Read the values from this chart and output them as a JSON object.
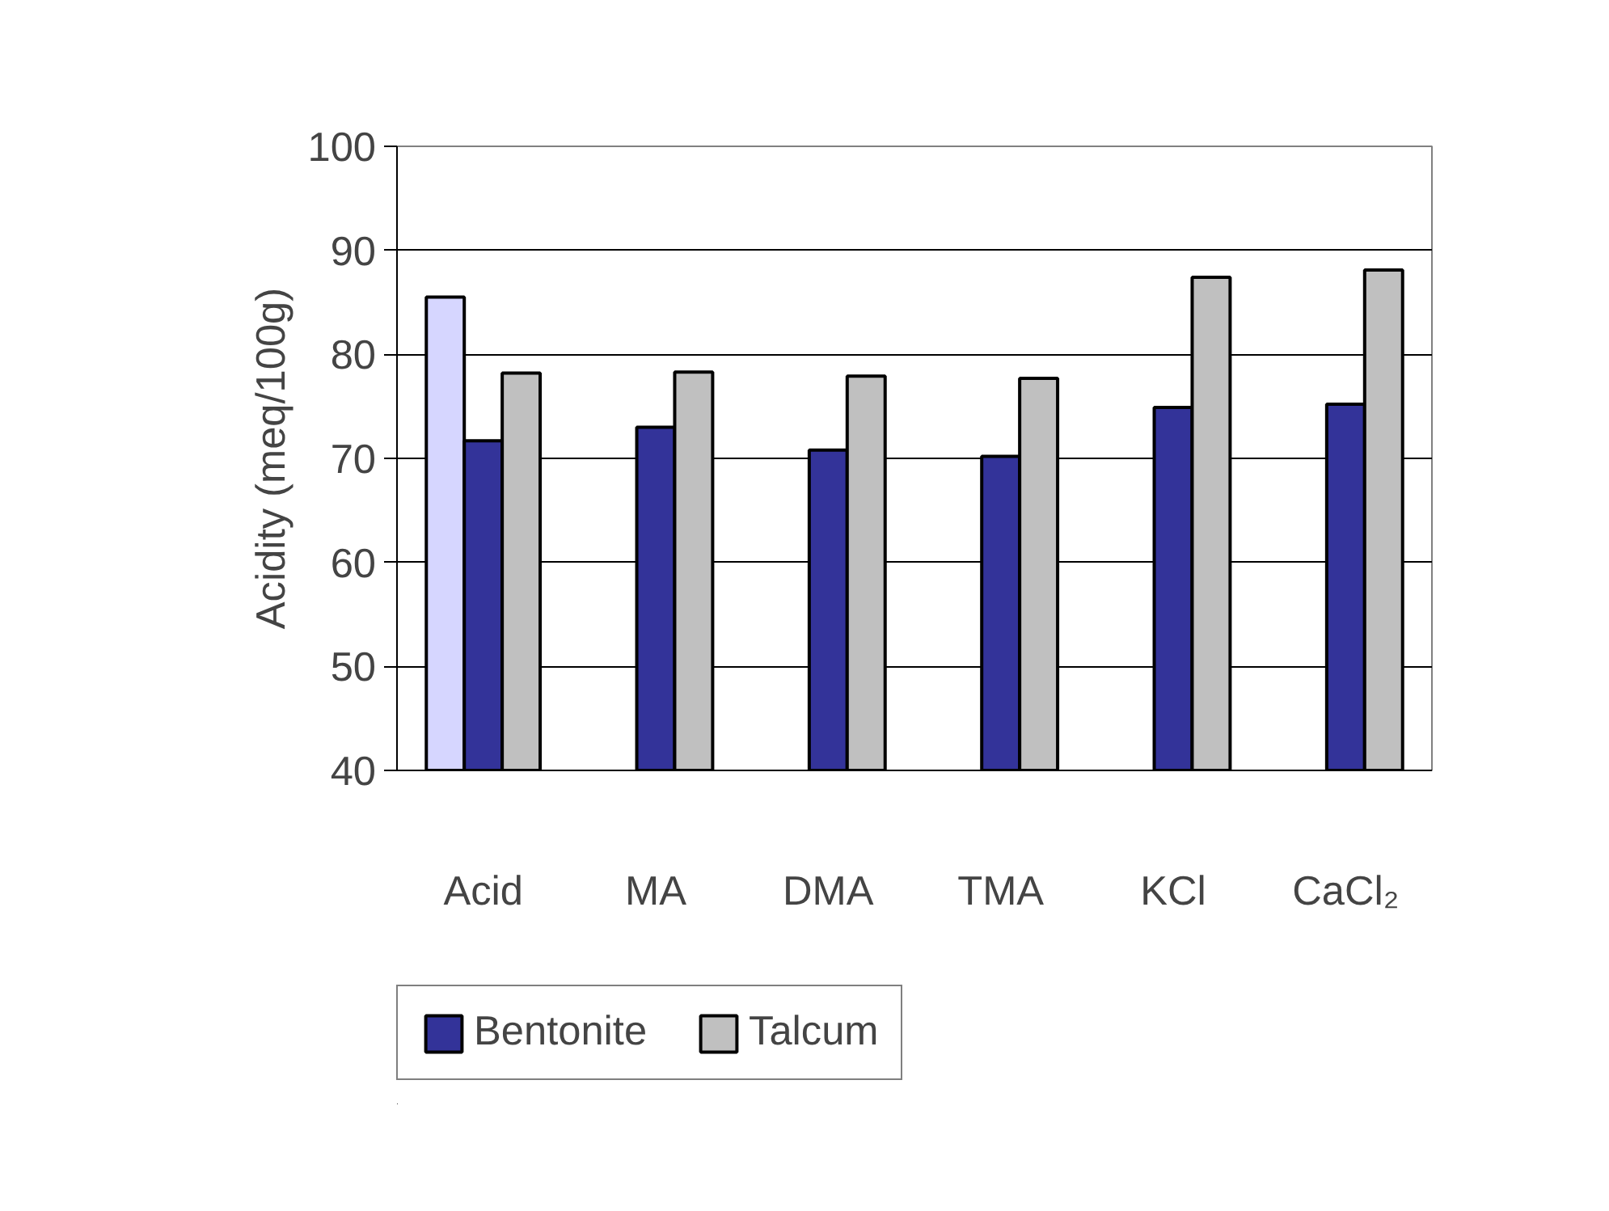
{
  "chart_data": {
    "type": "bar",
    "ylabel": "Acidity (meq/100g)",
    "categories": [
      "Acid",
      "MA",
      "DMA",
      "TMA",
      "KCl",
      "CaCl₂"
    ],
    "series": [
      {
        "color": "#d6d6ff",
        "values": [
          85.5,
          null,
          null,
          null,
          null,
          null
        ]
      },
      {
        "name": "Bentonite",
        "color": "#333399",
        "values": [
          71.7,
          73.0,
          70.8,
          70.2,
          74.9,
          75.2
        ]
      },
      {
        "name": "Talcum",
        "color": "#c0c0c0",
        "values": [
          78.2,
          78.3,
          77.9,
          77.7,
          87.4,
          88.1
        ]
      }
    ],
    "ylim": [
      40,
      100
    ],
    "yticks": [
      40,
      50,
      60,
      70,
      80,
      90,
      100
    ],
    "grid": "y",
    "legend": "bottom"
  }
}
